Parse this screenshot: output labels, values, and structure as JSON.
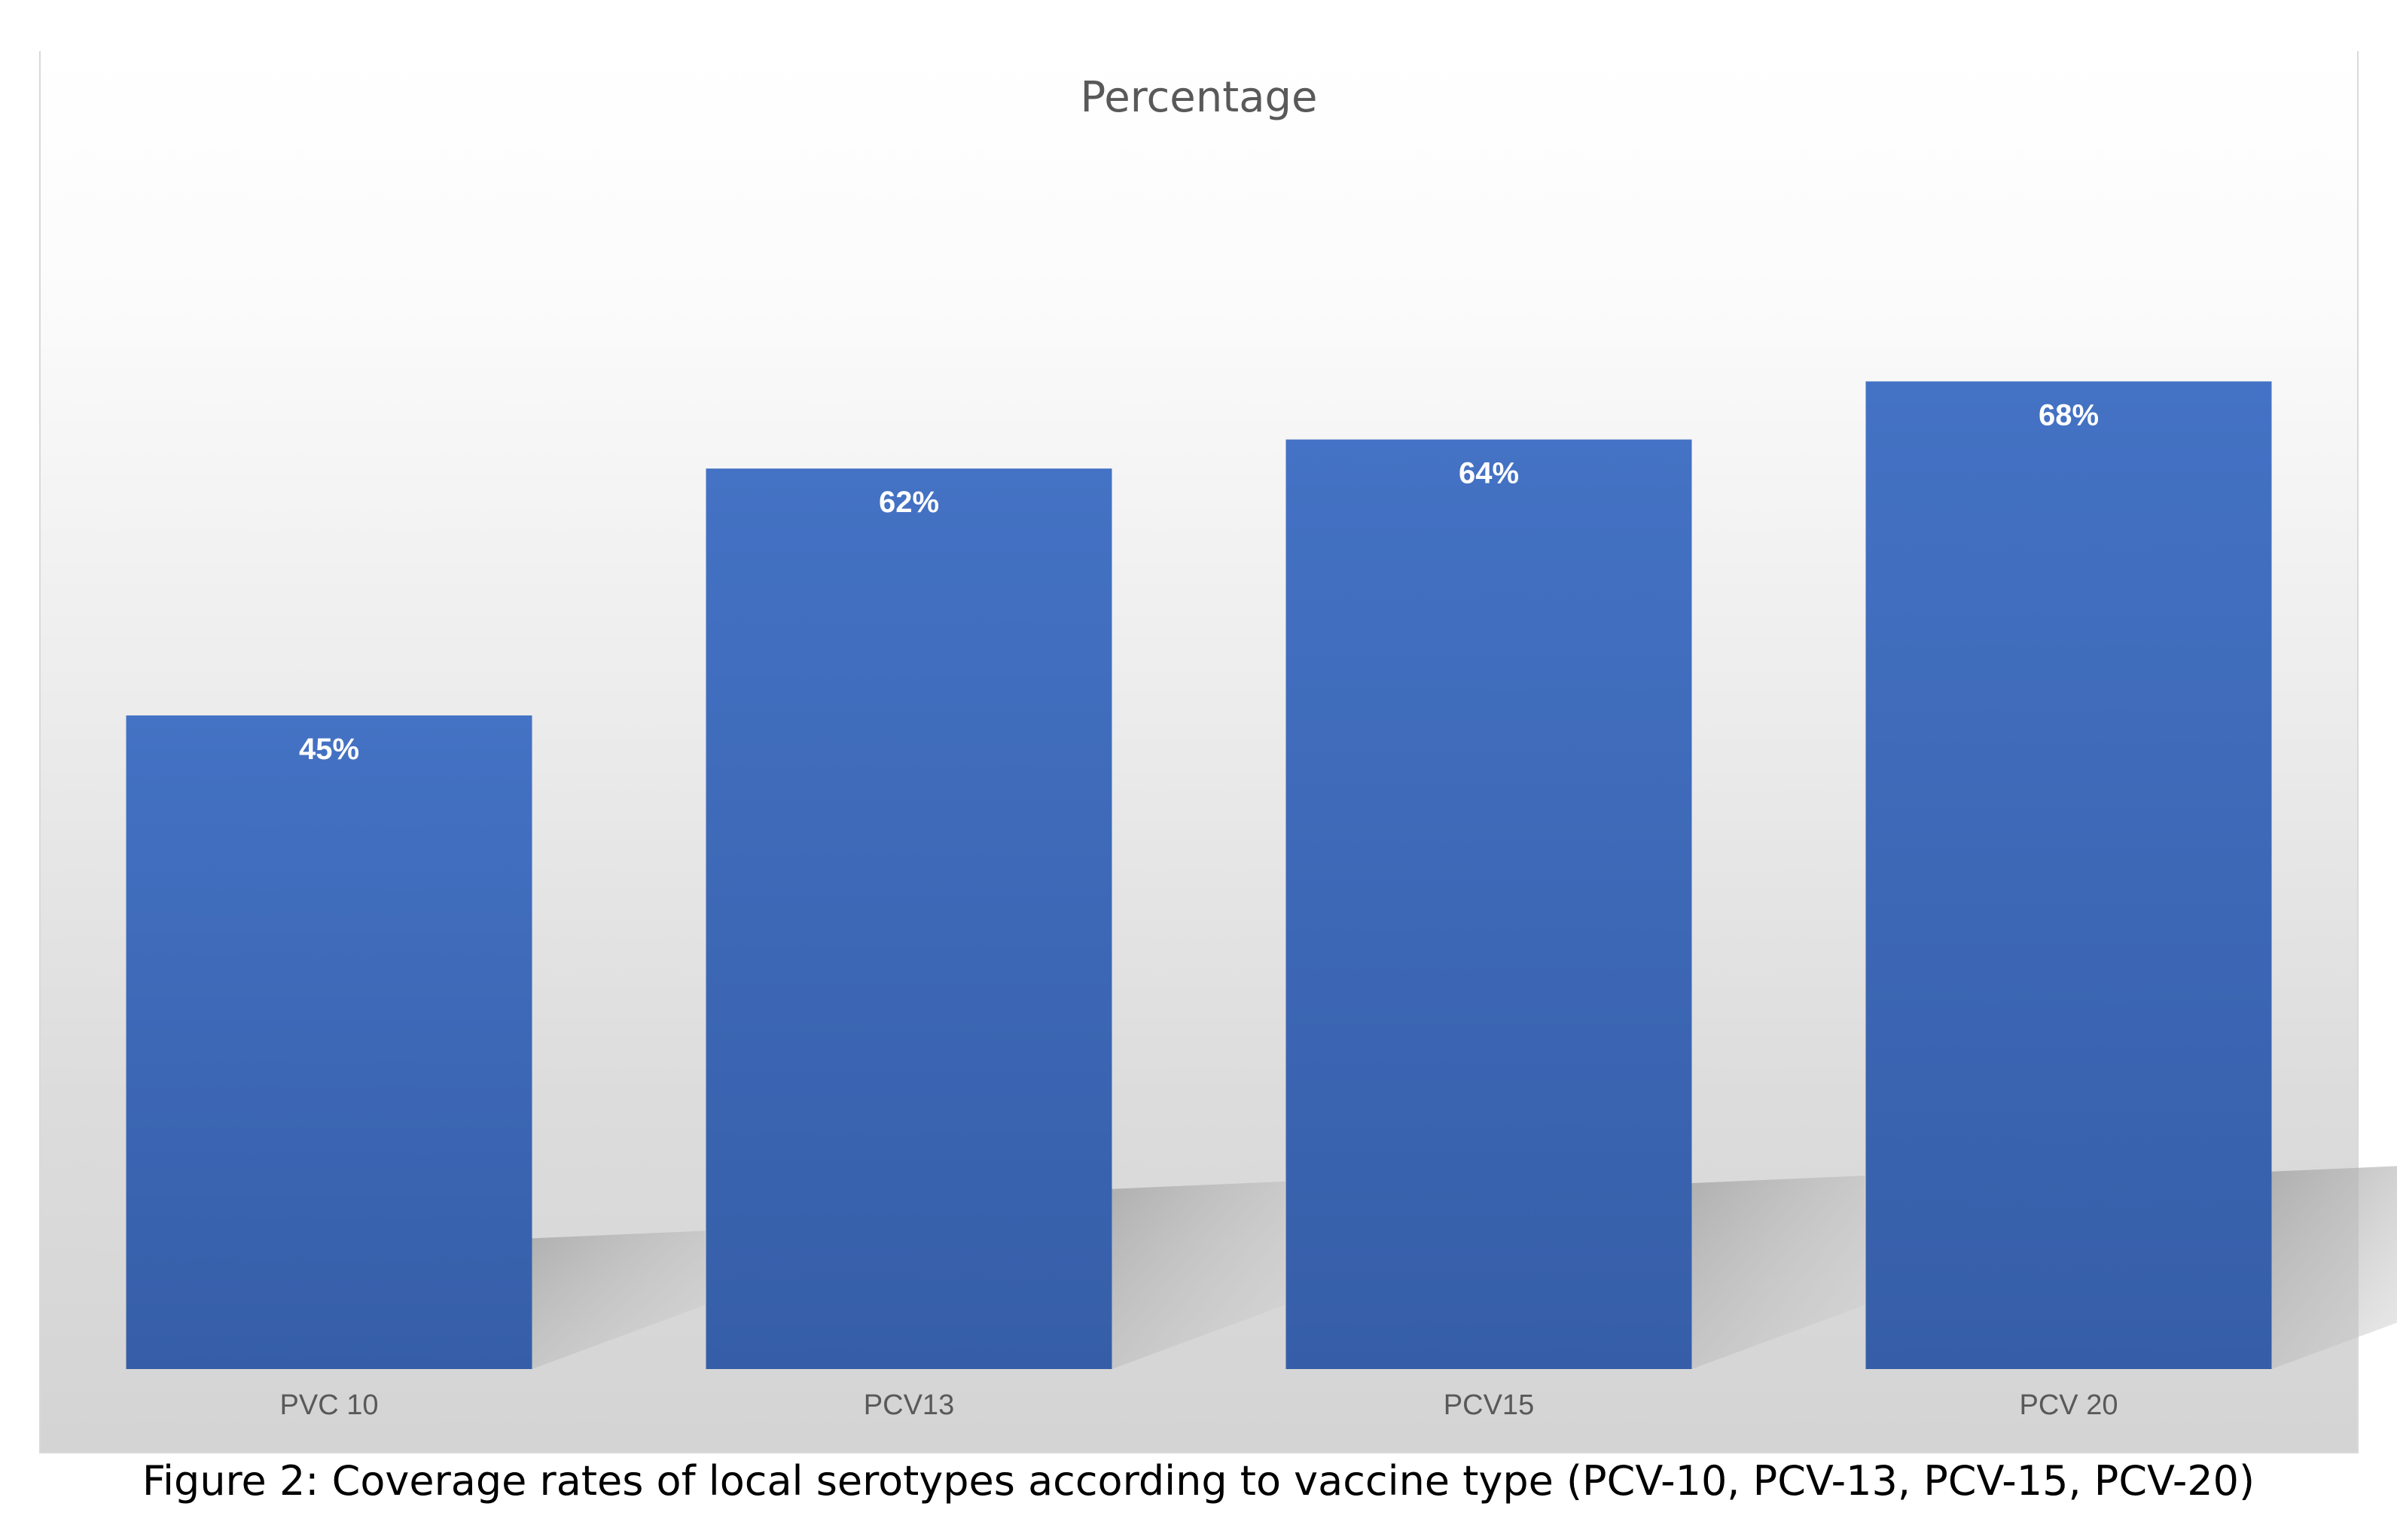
{
  "figure": {
    "caption": "Figure 2: Coverage rates of local serotypes according to vaccine type (PCV-10, PCV-13, PCV-15, PCV-20)"
  },
  "chart_data": {
    "type": "bar",
    "title": "Percentage",
    "categories": [
      "PVC 10",
      "PCV13",
      "PCV15",
      "PCV 20"
    ],
    "values": [
      45,
      62,
      64,
      68
    ],
    "data_labels": [
      "45%",
      "62%",
      "64%",
      "68%"
    ],
    "unit": "%",
    "xlabel": "",
    "ylabel": "",
    "ylim": [
      0,
      87
    ],
    "grid": false,
    "legend": "none",
    "colors": {
      "bar_top": "#4472c4",
      "bar_bottom": "#365ea8",
      "data_label": "#ffffff",
      "tick_label": "#595959",
      "title": "#595959",
      "shadow": "#b4b4b4"
    }
  }
}
